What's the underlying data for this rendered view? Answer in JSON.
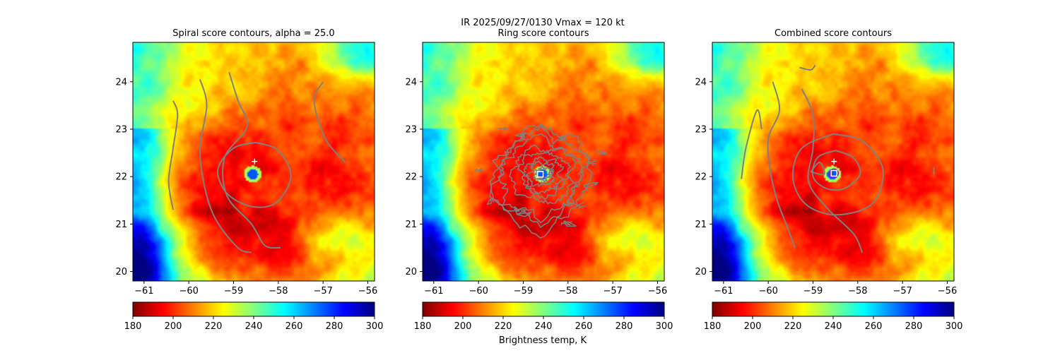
{
  "figure": {
    "suptitle_line1": "IR  2025/09/27/0130    Vmax = 120 kt",
    "colorbar_label": "Brightness temp, K"
  },
  "chart_data": [
    {
      "type": "heatmap",
      "title": "Spiral score contours, alpha = 25.0",
      "xlim": [
        -61.25,
        -55.85
      ],
      "ylim": [
        19.8,
        24.83
      ],
      "xticks": [
        -61,
        -60,
        -59,
        -58,
        -57,
        -56
      ],
      "yticks": [
        20,
        21,
        22,
        23,
        24
      ],
      "colorbar": {
        "min": 180,
        "max": 300,
        "ticks": [
          180,
          200,
          220,
          240,
          260,
          280,
          300
        ],
        "colormap": "jet_r"
      },
      "markers": [
        {
          "kind": "plus",
          "x": -58.53,
          "y": 22.32,
          "color": "#ffffff"
        }
      ],
      "contour_color": "#808080"
    },
    {
      "type": "heatmap",
      "title": "Ring score contours",
      "xlim": [
        -61.25,
        -55.85
      ],
      "ylim": [
        19.8,
        24.83
      ],
      "xticks": [
        -61,
        -60,
        -59,
        -58,
        -57,
        -56
      ],
      "yticks": [
        20,
        21,
        22,
        23,
        24
      ],
      "colorbar": {
        "min": 180,
        "max": 300,
        "ticks": [
          180,
          200,
          220,
          240,
          260,
          280,
          300
        ],
        "colormap": "jet_r"
      },
      "markers": [
        {
          "kind": "square",
          "x": -58.62,
          "y": 22.05,
          "color": "#ffffff"
        }
      ],
      "contour_color": "#808080"
    },
    {
      "type": "heatmap",
      "title": "Combined score contours",
      "xlim": [
        -61.25,
        -55.85
      ],
      "ylim": [
        19.8,
        24.83
      ],
      "xticks": [
        -61,
        -60,
        -59,
        -58,
        -57,
        -56
      ],
      "yticks": [
        20,
        21,
        22,
        23,
        24
      ],
      "colorbar": {
        "min": 180,
        "max": 300,
        "ticks": [
          180,
          200,
          220,
          240,
          260,
          280,
          300
        ],
        "colormap": "jet_r"
      },
      "markers": [
        {
          "kind": "plus",
          "x": -58.53,
          "y": 22.32,
          "color": "#ffffff"
        },
        {
          "kind": "circle",
          "x": -58.53,
          "y": 22.07,
          "color": "#b000b0"
        },
        {
          "kind": "square",
          "x": -58.53,
          "y": 22.07,
          "color": "#ffffff"
        }
      ],
      "contour_color": "#808080"
    }
  ]
}
